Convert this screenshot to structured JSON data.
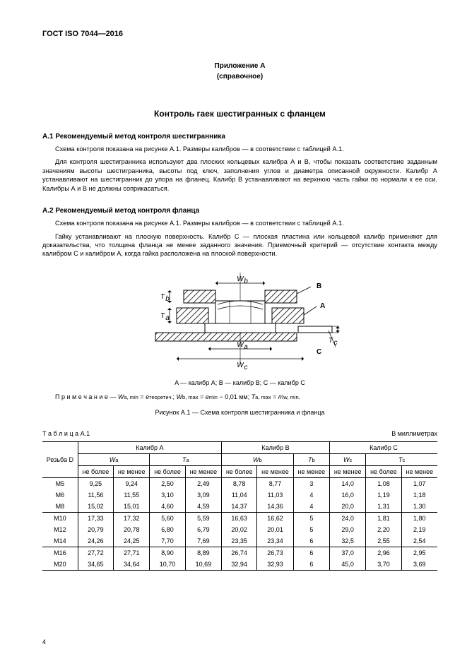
{
  "header": {
    "code": "ГОСТ ISO 7044—2016"
  },
  "appendix": {
    "label": "Приложение А",
    "note": "(справочное)"
  },
  "title": "Контроль гаек шестигранных с фланцем",
  "sectionA1": {
    "heading": "А.1  Рекомендуемый метод контроля шестигранника",
    "p1": "Схема контроля показана на рисунке А.1. Размеры калибров — в соответствии с таблицей А.1.",
    "p2": "Для контроля шестигранника используют два плоских кольцевых калибра А и В, чтобы показать соответствие заданным значениям высоты шестигранника, высоты под ключ, заполнения углов и диаметра описанной окружности. Калибр А устанавливают на шестигранник до упора на фланец. Калибр В устанавливают на верхнюю часть гайки по нормали к ее оси. Калибры А и В не должны соприкасаться."
  },
  "sectionA2": {
    "heading": "А.2  Рекомендуемый метод контроля фланца",
    "p1": "Схема контроля показана на рисунке А.1. Размеры калибров — в соответствии с таблицей А.1.",
    "p2": "Гайку устанавливают на плоскую поверхность. Калибр С — плоская пластина или кольцевой калибр применяют для доказательства, что толщина фланца не менее заданного значения. Приемочный критерий — отсутствие контакта между калибром С и калибром А, когда гайка расположена на плоской поверхности."
  },
  "figure": {
    "legend": "A — калибр A; B — калибр B; C — калибр C",
    "noteLabel": "П р и м е ч а н и е — ",
    "noteFormula": "W_{a, min} = e_{теоретич.}; W_{b, max} = e_{min} − 0,01 мм; T_{a, max} = m_{w, min}.",
    "caption": "Рисунок А.1 — Схема контроля шестигранника и фланца",
    "labels": {
      "Wb": "Wb",
      "Wa": "Wa",
      "Wc": "Wc",
      "B": "B",
      "A": "A",
      "C": "C",
      "Tb": "Tb",
      "Ta": "Ta",
      "Tc": "Tc"
    },
    "style": {
      "background": "#ffffff",
      "stroke": "#000000",
      "hatch": "#333333",
      "dimLine": "#000000",
      "textSize": 10
    }
  },
  "table": {
    "label": "Т а б л и ц а  А.1",
    "units": "В миллиметрах",
    "group_headers": [
      "Калибр А",
      "Калибр В",
      "Калибр С"
    ],
    "thread_header": "Резьба D",
    "param_headers": {
      "Wa": "W_a",
      "Ta": "T_a",
      "Wb": "W_b",
      "Tb": "T_b",
      "Wc": "W_c",
      "Tc": "T_c"
    },
    "sub_headers": {
      "max": "не более",
      "min": "не менее"
    },
    "rows": [
      {
        "d": "М5",
        "Wa_max": "9,25",
        "Wa_min": "9,24",
        "Ta_max": "2,50",
        "Ta_min": "2,49",
        "Wb_max": "8,78",
        "Wb_min": "8,77",
        "Tb_min": "3",
        "Wc_min": "14,0",
        "Tc_max": "1,08",
        "Tc_min": "1,07"
      },
      {
        "d": "М6",
        "Wa_max": "11,56",
        "Wa_min": "11,55",
        "Ta_max": "3,10",
        "Ta_min": "3,09",
        "Wb_max": "11,04",
        "Wb_min": "11,03",
        "Tb_min": "4",
        "Wc_min": "16,0",
        "Tc_max": "1,19",
        "Tc_min": "1,18"
      },
      {
        "d": "М8",
        "Wa_max": "15,02",
        "Wa_min": "15,01",
        "Ta_max": "4,60",
        "Ta_min": "4,59",
        "Wb_max": "14,37",
        "Wb_min": "14,36",
        "Tb_min": "4",
        "Wc_min": "20,0",
        "Tc_max": "1,31",
        "Tc_min": "1,30"
      },
      {
        "d": "М10",
        "Wa_max": "17,33",
        "Wa_min": "17,32",
        "Ta_max": "5,60",
        "Ta_min": "5,59",
        "Wb_max": "16,63",
        "Wb_min": "16,62",
        "Tb_min": "5",
        "Wc_min": "24,0",
        "Tc_max": "1,81",
        "Tc_min": "1,80"
      },
      {
        "d": "М12",
        "Wa_max": "20,79",
        "Wa_min": "20,78",
        "Ta_max": "6,80",
        "Ta_min": "6,79",
        "Wb_max": "20,02",
        "Wb_min": "20,01",
        "Tb_min": "5",
        "Wc_min": "29,0",
        "Tc_max": "2,20",
        "Tc_min": "2,19"
      },
      {
        "d": "М14",
        "Wa_max": "24,26",
        "Wa_min": "24,25",
        "Ta_max": "7,70",
        "Ta_min": "7,69",
        "Wb_max": "23,35",
        "Wb_min": "23,34",
        "Tb_min": "6",
        "Wc_min": "32,5",
        "Tc_max": "2,55",
        "Tc_min": "2,54"
      },
      {
        "d": "М16",
        "Wa_max": "27,72",
        "Wa_min": "27,71",
        "Ta_max": "8,90",
        "Ta_min": "8,89",
        "Wb_max": "26,74",
        "Wb_min": "26,73",
        "Tb_min": "6",
        "Wc_min": "37,0",
        "Tc_max": "2,96",
        "Tc_min": "2,95"
      },
      {
        "d": "М20",
        "Wa_max": "34,65",
        "Wa_min": "34,64",
        "Ta_max": "10,70",
        "Ta_min": "10,69",
        "Wb_max": "32,94",
        "Wb_min": "32,93",
        "Tb_min": "6",
        "Wc_min": "45,0",
        "Tc_max": "3,70",
        "Tc_min": "3,69"
      }
    ],
    "group_breaks_after": [
      2,
      5
    ]
  },
  "pageNumber": "4"
}
